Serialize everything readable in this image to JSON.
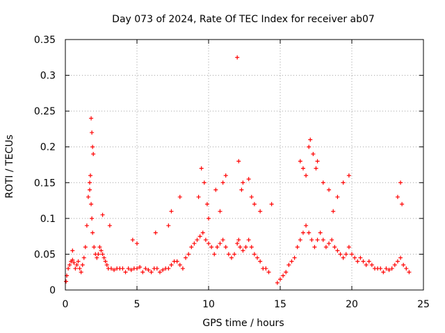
{
  "chart_data": {
    "type": "scatter",
    "title": "Day 073 of 2024, Rate Of TEC Index for receiver ab07",
    "xlabel": "GPS time / hours",
    "ylabel": "ROTI / TECUs",
    "xlim": [
      0,
      25
    ],
    "ylim": [
      0,
      0.35
    ],
    "xticks": [
      "0",
      "5",
      "10",
      "15",
      "20",
      "25"
    ],
    "yticks": [
      "0",
      "0.05",
      "0.1",
      "0.15",
      "0.2",
      "0.25",
      "0.3",
      "0.35"
    ],
    "grid": true,
    "marker": "plus",
    "color": "#ff0000",
    "series": [
      {
        "name": "",
        "x": [
          0.05,
          0.1,
          0.2,
          0.3,
          0.4,
          0.5,
          0.6,
          0.7,
          0.8,
          0.9,
          1.0,
          1.1,
          1.2,
          1.3,
          1.4,
          1.5,
          1.6,
          1.7,
          1.8,
          1.85,
          1.9,
          2.0,
          2.1,
          2.2,
          2.3,
          2.4,
          2.5,
          2.6,
          2.7,
          2.8,
          2.9,
          3.0,
          3.2,
          3.4,
          3.6,
          3.8,
          4.0,
          4.2,
          4.4,
          4.6,
          4.8,
          5.0,
          5.2,
          5.4,
          5.6,
          5.8,
          6.0,
          6.2,
          6.4,
          6.6,
          6.8,
          7.0,
          7.2,
          7.4,
          7.6,
          7.8,
          8.0,
          8.2,
          8.4,
          8.6,
          8.8,
          9.0,
          9.2,
          9.4,
          9.6,
          9.8,
          10.0,
          10.2,
          10.4,
          10.6,
          10.8,
          11.0,
          11.2,
          11.4,
          11.6,
          11.8,
          12.0,
          12.1,
          12.2,
          12.4,
          12.6,
          12.8,
          13.0,
          13.2,
          13.4,
          13.6,
          13.8,
          14.0,
          14.2,
          14.8,
          15.0,
          15.2,
          15.4,
          15.6,
          15.8,
          16.0,
          16.2,
          16.4,
          16.6,
          16.8,
          17.0,
          17.2,
          17.4,
          17.6,
          17.8,
          18.0,
          18.2,
          18.4,
          18.6,
          18.8,
          19.0,
          19.2,
          19.4,
          19.6,
          19.8,
          20.0,
          20.2,
          20.4,
          20.6,
          20.8,
          21.0,
          21.2,
          21.4,
          21.6,
          21.8,
          22.0,
          22.2,
          22.4,
          22.6,
          22.8,
          23.0,
          23.2,
          23.4,
          23.6,
          23.8,
          24.0,
          1.8,
          1.85,
          1.9,
          1.75,
          1.7,
          1.95,
          2.6,
          5.0,
          7.2,
          7.4,
          8.0,
          9.5,
          9.7,
          9.9,
          10.5,
          10.8,
          11.0,
          11.2,
          12.0,
          12.1,
          12.4,
          12.8,
          13.0,
          13.2,
          13.6,
          16.4,
          16.6,
          16.8,
          17.0,
          17.1,
          17.3,
          17.6,
          18.0,
          18.4,
          19.0,
          19.4,
          19.8,
          23.2,
          23.4,
          23.5,
          10.0,
          12.3,
          17.5,
          18.7,
          9.3,
          4.7,
          3.1,
          0.5,
          14.4,
          6.3
        ],
        "y": [
          0.012,
          0.02,
          0.03,
          0.035,
          0.04,
          0.042,
          0.038,
          0.03,
          0.035,
          0.04,
          0.03,
          0.025,
          0.035,
          0.045,
          0.06,
          0.09,
          0.13,
          0.15,
          0.12,
          0.1,
          0.08,
          0.06,
          0.05,
          0.045,
          0.05,
          0.06,
          0.055,
          0.05,
          0.045,
          0.04,
          0.035,
          0.03,
          0.03,
          0.028,
          0.03,
          0.03,
          0.03,
          0.025,
          0.03,
          0.028,
          0.03,
          0.03,
          0.032,
          0.025,
          0.03,
          0.028,
          0.025,
          0.03,
          0.03,
          0.025,
          0.028,
          0.03,
          0.03,
          0.035,
          0.04,
          0.04,
          0.035,
          0.03,
          0.045,
          0.05,
          0.06,
          0.065,
          0.07,
          0.075,
          0.08,
          0.07,
          0.065,
          0.06,
          0.05,
          0.06,
          0.065,
          0.07,
          0.06,
          0.05,
          0.045,
          0.05,
          0.065,
          0.07,
          0.06,
          0.055,
          0.06,
          0.07,
          0.06,
          0.05,
          0.045,
          0.04,
          0.03,
          0.03,
          0.025,
          0.01,
          0.015,
          0.02,
          0.025,
          0.035,
          0.04,
          0.045,
          0.06,
          0.07,
          0.08,
          0.09,
          0.08,
          0.07,
          0.06,
          0.07,
          0.08,
          0.07,
          0.06,
          0.065,
          0.07,
          0.06,
          0.055,
          0.05,
          0.045,
          0.05,
          0.06,
          0.05,
          0.045,
          0.04,
          0.045,
          0.04,
          0.035,
          0.04,
          0.035,
          0.03,
          0.03,
          0.03,
          0.025,
          0.03,
          0.028,
          0.03,
          0.035,
          0.04,
          0.045,
          0.035,
          0.03,
          0.025,
          0.24,
          0.22,
          0.2,
          0.16,
          0.14,
          0.19,
          0.105,
          0.065,
          0.09,
          0.11,
          0.13,
          0.17,
          0.15,
          0.12,
          0.14,
          0.11,
          0.15,
          0.16,
          0.325,
          0.18,
          0.15,
          0.155,
          0.13,
          0.12,
          0.11,
          0.18,
          0.17,
          0.16,
          0.2,
          0.21,
          0.19,
          0.18,
          0.15,
          0.14,
          0.13,
          0.15,
          0.16,
          0.13,
          0.15,
          0.12,
          0.1,
          0.14,
          0.17,
          0.11,
          0.13,
          0.07,
          0.09,
          0.055,
          0.12,
          0.08
        ]
      }
    ]
  }
}
